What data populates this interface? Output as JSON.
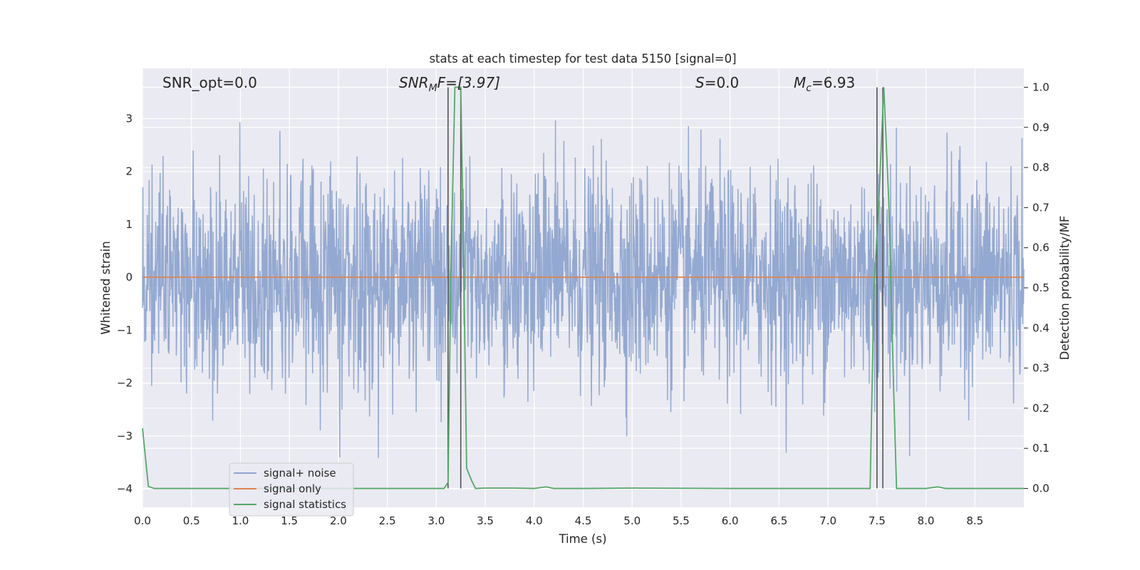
{
  "chart_data": {
    "type": "line",
    "title": "stats at each timestep for test data 5150 [signal=0]",
    "xlabel": "Time (s)",
    "ylabel": "Whitened strain",
    "y2label": "Detection probability/MF",
    "xlim": [
      0.0,
      9.0
    ],
    "ylim": [
      -4.35,
      3.95
    ],
    "y2lim": [
      -0.047,
      1.047
    ],
    "xticks": [
      "0.0",
      "0.5",
      "1.0",
      "1.5",
      "2.0",
      "2.5",
      "3.0",
      "3.5",
      "4.0",
      "4.5",
      "5.0",
      "5.5",
      "6.0",
      "6.5",
      "7.0",
      "7.5",
      "8.0",
      "8.5"
    ],
    "yticks": [
      "−4",
      "−3",
      "−2",
      "−1",
      "0",
      "1",
      "2",
      "3"
    ],
    "y2ticks": [
      "0.0",
      "0.1",
      "0.2",
      "0.3",
      "0.4",
      "0.5",
      "0.6",
      "0.7",
      "0.8",
      "0.9",
      "1.0"
    ],
    "grid": true,
    "legend_position": "lower-left",
    "annotations": {
      "snr_opt": "SNR_opt=0.0",
      "snr_mf_base": "SNR",
      "snr_mf_sub": "M",
      "snr_mf_rest": "F=[3.97]",
      "s_var": "S",
      "s_rest": "=0.0",
      "mc_var": "M",
      "mc_sub": "c",
      "mc_rest": "=6.93"
    },
    "series": [
      {
        "name": "signal+ noise",
        "color": "#8fa5cf",
        "description_values": "dense whitened noise, roughly within ±1.3 with spikes to about 3.6 and −3.7, sampled over 0–9 s"
      },
      {
        "name": "signal only",
        "color": "#dd8452",
        "x": [
          0.0,
          9.0
        ],
        "y": [
          0.0,
          0.0
        ]
      },
      {
        "name": "signal statistics",
        "color": "#55a868",
        "x": [
          0.0,
          0.06,
          0.12,
          0.5,
          1.0,
          2.0,
          3.0,
          3.08,
          3.12,
          3.15,
          3.19,
          3.25,
          3.28,
          3.31,
          3.36,
          3.4,
          3.5,
          3.8,
          4.0,
          4.12,
          4.2,
          4.5,
          5.0,
          6.0,
          7.0,
          7.43,
          7.47,
          7.52,
          7.57,
          7.62,
          7.67,
          7.7,
          7.75,
          8.0,
          8.12,
          8.2,
          8.5,
          9.0
        ],
        "y": [
          0.15,
          0.005,
          0.0,
          0.0,
          0.0,
          0.0,
          0.0,
          0.0,
          0.015,
          0.55,
          1.0,
          1.0,
          0.56,
          0.05,
          0.02,
          0.0,
          0.001,
          0.001,
          0.0,
          0.004,
          0.0,
          0.0,
          0.001,
          0.0,
          0.0,
          0.0,
          0.5,
          0.72,
          1.0,
          0.72,
          0.25,
          0.0,
          0.0,
          0.0,
          0.004,
          0.0,
          0.0,
          0.0
        ]
      }
    ],
    "vlines": [
      {
        "x": 3.12,
        "y_top": 1.0,
        "color": "#555555"
      },
      {
        "x": 3.25,
        "y_top": 1.0,
        "color": "#555555"
      },
      {
        "x": 7.5,
        "y_top": 1.0,
        "color": "#555555"
      },
      {
        "x": 7.56,
        "y_top": 1.0,
        "color": "#555555"
      }
    ],
    "colors": {
      "plot_background": "#eaeaf2",
      "grid": "#ffffff",
      "text": "#262626"
    }
  }
}
